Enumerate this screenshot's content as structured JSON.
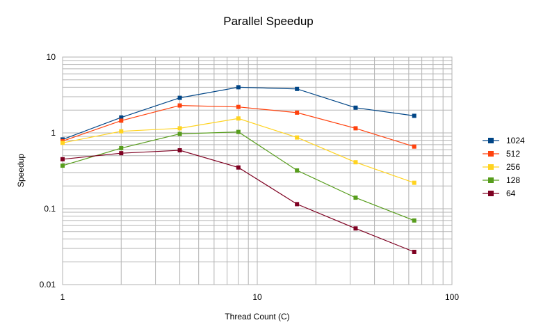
{
  "chart_data": {
    "type": "line",
    "title": "Parallel Speedup",
    "xlabel": "Thread Count (C)",
    "ylabel": "Speedup",
    "xscale": "log",
    "yscale": "log",
    "xlim": [
      1,
      100
    ],
    "ylim": [
      0.01,
      10
    ],
    "x_ticks": [
      "1",
      "10",
      "100"
    ],
    "y_ticks": [
      "0.01",
      "0.1",
      "1",
      "10"
    ],
    "grid": "major and minor",
    "legend_position": "right",
    "x": [
      1,
      2,
      4,
      8,
      16,
      32,
      64
    ],
    "series": [
      {
        "name": "1024",
        "color": "#004586",
        "values": [
          0.82,
          1.6,
          2.9,
          4.0,
          3.8,
          2.15,
          1.68
        ]
      },
      {
        "name": "512",
        "color": "#ff420e",
        "values": [
          0.78,
          1.45,
          2.3,
          2.2,
          1.85,
          1.15,
          0.66
        ]
      },
      {
        "name": "256",
        "color": "#ffd320",
        "values": [
          0.74,
          1.05,
          1.15,
          1.55,
          0.87,
          0.41,
          0.22
        ]
      },
      {
        "name": "128",
        "color": "#579d1c",
        "values": [
          0.37,
          0.63,
          0.97,
          1.03,
          0.32,
          0.14,
          0.07
        ]
      },
      {
        "name": "64",
        "color": "#7e0021",
        "values": [
          0.45,
          0.54,
          0.59,
          0.35,
          0.115,
          0.055,
          0.027
        ]
      }
    ]
  }
}
